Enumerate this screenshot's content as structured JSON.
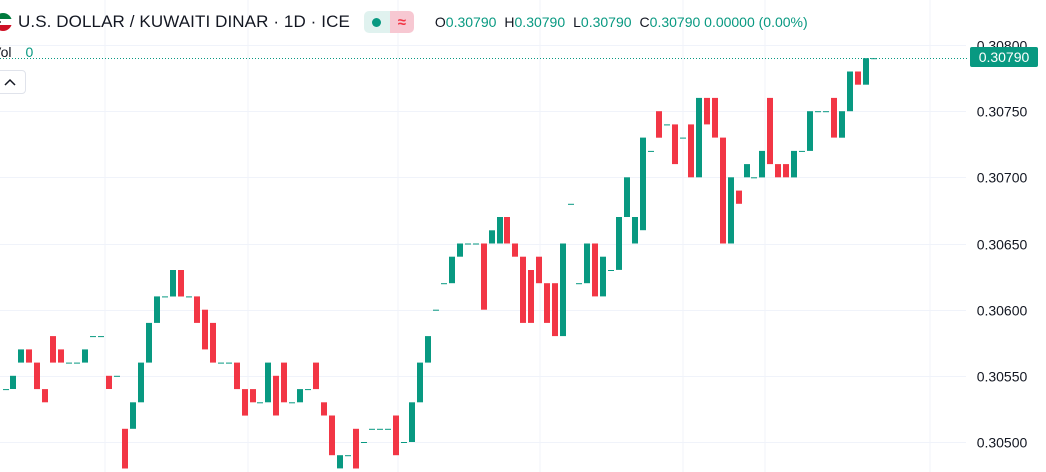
{
  "header": {
    "symbol": "U.S. DOLLAR / KUWAITI DINAR · 1D · ICE",
    "status_wave_glyph": "≈",
    "ohlc": [
      {
        "key": "O",
        "value": "0.30790"
      },
      {
        "key": "H",
        "value": "0.30790"
      },
      {
        "key": "L",
        "value": "0.30790"
      },
      {
        "key": "C",
        "value": "0.30790 0.00000 (0.00%)"
      }
    ]
  },
  "volume": {
    "label": "Vol",
    "value": "0"
  },
  "last_price_label": "0.30790",
  "colors": {
    "up": "#089981",
    "down": "#f23645",
    "grid": "#f0f3fa",
    "axis_text": "#131722"
  },
  "chart_data": {
    "type": "candlestick",
    "y_ticks": [
      "0.30800",
      "0.30750",
      "0.30700",
      "0.30650",
      "0.30600",
      "0.30550",
      "0.30500"
    ],
    "ylim": [
      0.3048,
      0.308
    ],
    "last_price": 0.3079,
    "grid": true,
    "candles": [
      {
        "o": 0.3054,
        "c": 0.3054
      },
      {
        "o": 0.3054,
        "c": 0.3055
      },
      {
        "o": 0.3056,
        "c": 0.3057
      },
      {
        "o": 0.3057,
        "c": 0.3056
      },
      {
        "o": 0.3056,
        "c": 0.3054
      },
      {
        "o": 0.3054,
        "c": 0.3053
      },
      {
        "o": 0.3058,
        "c": 0.3056
      },
      {
        "o": 0.3057,
        "c": 0.3056
      },
      {
        "o": 0.3056,
        "c": 0.3056
      },
      {
        "o": 0.3056,
        "c": 0.3056
      },
      {
        "o": 0.3056,
        "c": 0.3057
      },
      {
        "o": 0.3058,
        "c": 0.3058
      },
      {
        "o": 0.3058,
        "c": 0.3058
      },
      {
        "o": 0.3055,
        "c": 0.3054
      },
      {
        "o": 0.3055,
        "c": 0.3055
      },
      {
        "o": 0.3051,
        "c": 0.3048
      },
      {
        "o": 0.3051,
        "c": 0.3053
      },
      {
        "o": 0.3053,
        "c": 0.3056
      },
      {
        "o": 0.3056,
        "c": 0.3059
      },
      {
        "o": 0.3059,
        "c": 0.3061
      },
      {
        "o": 0.3061,
        "c": 0.3061
      },
      {
        "o": 0.3061,
        "c": 0.3063
      },
      {
        "o": 0.3063,
        "c": 0.3061
      },
      {
        "o": 0.3061,
        "c": 0.3061
      },
      {
        "o": 0.3061,
        "c": 0.3059
      },
      {
        "o": 0.306,
        "c": 0.3057
      },
      {
        "o": 0.3059,
        "c": 0.3056
      },
      {
        "o": 0.3056,
        "c": 0.3056
      },
      {
        "o": 0.3056,
        "c": 0.3056
      },
      {
        "o": 0.3056,
        "c": 0.3054
      },
      {
        "o": 0.3054,
        "c": 0.3052
      },
      {
        "o": 0.3054,
        "c": 0.3053
      },
      {
        "o": 0.3053,
        "c": 0.3053
      },
      {
        "o": 0.3053,
        "c": 0.3056
      },
      {
        "o": 0.3055,
        "c": 0.3052
      },
      {
        "o": 0.3056,
        "c": 0.3053
      },
      {
        "o": 0.3053,
        "c": 0.3053
      },
      {
        "o": 0.3053,
        "c": 0.3054
      },
      {
        "o": 0.3054,
        "c": 0.3054
      },
      {
        "o": 0.3056,
        "c": 0.3054
      },
      {
        "o": 0.3053,
        "c": 0.3052
      },
      {
        "o": 0.3052,
        "c": 0.3049
      },
      {
        "o": 0.3048,
        "c": 0.3049
      },
      {
        "o": 0.3049,
        "c": 0.3049
      },
      {
        "o": 0.3051,
        "c": 0.3048
      },
      {
        "o": 0.305,
        "c": 0.305
      },
      {
        "o": 0.3051,
        "c": 0.3051
      },
      {
        "o": 0.3051,
        "c": 0.3051
      },
      {
        "o": 0.3051,
        "c": 0.3051
      },
      {
        "o": 0.3052,
        "c": 0.3049
      },
      {
        "o": 0.305,
        "c": 0.305
      },
      {
        "o": 0.305,
        "c": 0.3053
      },
      {
        "o": 0.3053,
        "c": 0.3056
      },
      {
        "o": 0.3056,
        "c": 0.3058
      },
      {
        "o": 0.306,
        "c": 0.306
      },
      {
        "o": 0.3062,
        "c": 0.3062
      },
      {
        "o": 0.3062,
        "c": 0.3064
      },
      {
        "o": 0.3064,
        "c": 0.3065
      },
      {
        "o": 0.3065,
        "c": 0.3065
      },
      {
        "o": 0.3065,
        "c": 0.3065
      },
      {
        "o": 0.3065,
        "c": 0.306
      },
      {
        "o": 0.3065,
        "c": 0.3066
      },
      {
        "o": 0.3065,
        "c": 0.3067
      },
      {
        "o": 0.3067,
        "c": 0.3065
      },
      {
        "o": 0.3065,
        "c": 0.3064
      },
      {
        "o": 0.3064,
        "c": 0.3059
      },
      {
        "o": 0.3063,
        "c": 0.3059
      },
      {
        "o": 0.3064,
        "c": 0.3062
      },
      {
        "o": 0.3062,
        "c": 0.3059
      },
      {
        "o": 0.3062,
        "c": 0.3058
      },
      {
        "o": 0.3058,
        "c": 0.3065
      },
      {
        "o": 0.3068,
        "c": 0.3068
      },
      {
        "o": 0.3062,
        "c": 0.3062
      },
      {
        "o": 0.3062,
        "c": 0.3065
      },
      {
        "o": 0.3065,
        "c": 0.3061
      },
      {
        "o": 0.3061,
        "c": 0.3064
      },
      {
        "o": 0.3063,
        "c": 0.3063
      },
      {
        "o": 0.3063,
        "c": 0.3067
      },
      {
        "o": 0.3067,
        "c": 0.307
      },
      {
        "o": 0.3065,
        "c": 0.3067
      },
      {
        "o": 0.3066,
        "c": 0.3073
      },
      {
        "o": 0.3072,
        "c": 0.3072
      },
      {
        "o": 0.3075,
        "c": 0.3073
      },
      {
        "o": 0.3074,
        "c": 0.3074
      },
      {
        "o": 0.3074,
        "c": 0.3071
      },
      {
        "o": 0.3073,
        "c": 0.3073
      },
      {
        "o": 0.3074,
        "c": 0.307
      },
      {
        "o": 0.307,
        "c": 0.3076
      },
      {
        "o": 0.3076,
        "c": 0.3074
      },
      {
        "o": 0.3076,
        "c": 0.3073
      },
      {
        "o": 0.3073,
        "c": 0.3065
      },
      {
        "o": 0.3065,
        "c": 0.307
      },
      {
        "o": 0.3069,
        "c": 0.3068
      },
      {
        "o": 0.307,
        "c": 0.3071
      },
      {
        "o": 0.307,
        "c": 0.307
      },
      {
        "o": 0.307,
        "c": 0.3072
      },
      {
        "o": 0.3076,
        "c": 0.3071
      },
      {
        "o": 0.3071,
        "c": 0.307
      },
      {
        "o": 0.3071,
        "c": 0.307
      },
      {
        "o": 0.307,
        "c": 0.3072
      },
      {
        "o": 0.3072,
        "c": 0.3072
      },
      {
        "o": 0.3072,
        "c": 0.3075
      },
      {
        "o": 0.3075,
        "c": 0.3075
      },
      {
        "o": 0.3075,
        "c": 0.3075
      },
      {
        "o": 0.3076,
        "c": 0.3073
      },
      {
        "o": 0.3073,
        "c": 0.3075
      },
      {
        "o": 0.3075,
        "c": 0.3078
      },
      {
        "o": 0.3078,
        "c": 0.3077
      },
      {
        "o": 0.3077,
        "c": 0.3079
      },
      {
        "o": 0.3079,
        "c": 0.3079
      }
    ]
  }
}
